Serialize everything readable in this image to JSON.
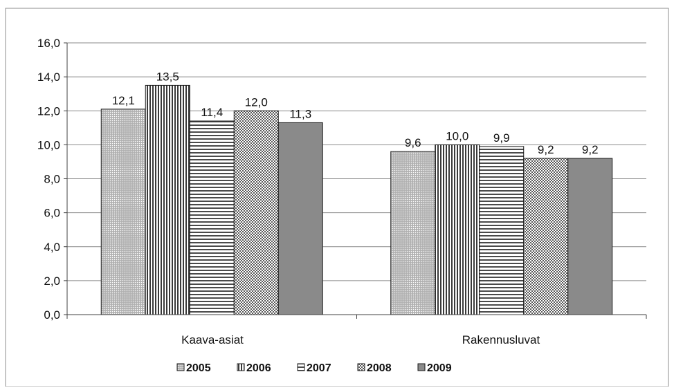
{
  "chart_data": {
    "type": "bar",
    "categories": [
      "Kaava-asiat",
      "Rakennusluvat"
    ],
    "series": [
      {
        "name": "2005",
        "values": [
          12.1,
          9.6
        ],
        "color": "#c8c8c8",
        "pattern": "fine-dots"
      },
      {
        "name": "2006",
        "values": [
          13.5,
          10.0
        ],
        "color": "#ffffff",
        "pattern": "vertical-lines"
      },
      {
        "name": "2007",
        "values": [
          11.4,
          9.9
        ],
        "color": "#ffffff",
        "pattern": "horizontal-lines"
      },
      {
        "name": "2008",
        "values": [
          12.0,
          9.2
        ],
        "color": "#ffffff",
        "pattern": "checker"
      },
      {
        "name": "2009",
        "values": [
          11.3,
          9.2
        ],
        "color": "#8a8a8a",
        "pattern": "solid"
      }
    ],
    "value_labels": [
      [
        "12,1",
        "9,6"
      ],
      [
        "13,5",
        "10,0"
      ],
      [
        "11,4",
        "9,9"
      ],
      [
        "12,0",
        "9,2"
      ],
      [
        "11,3",
        "9,2"
      ]
    ],
    "yticks": [
      "0,0",
      "2,0",
      "4,0",
      "6,0",
      "8,0",
      "10,0",
      "12,0",
      "14,0",
      "16,0"
    ],
    "ylim": [
      0,
      16
    ],
    "grid": true,
    "legend_position": "bottom"
  }
}
